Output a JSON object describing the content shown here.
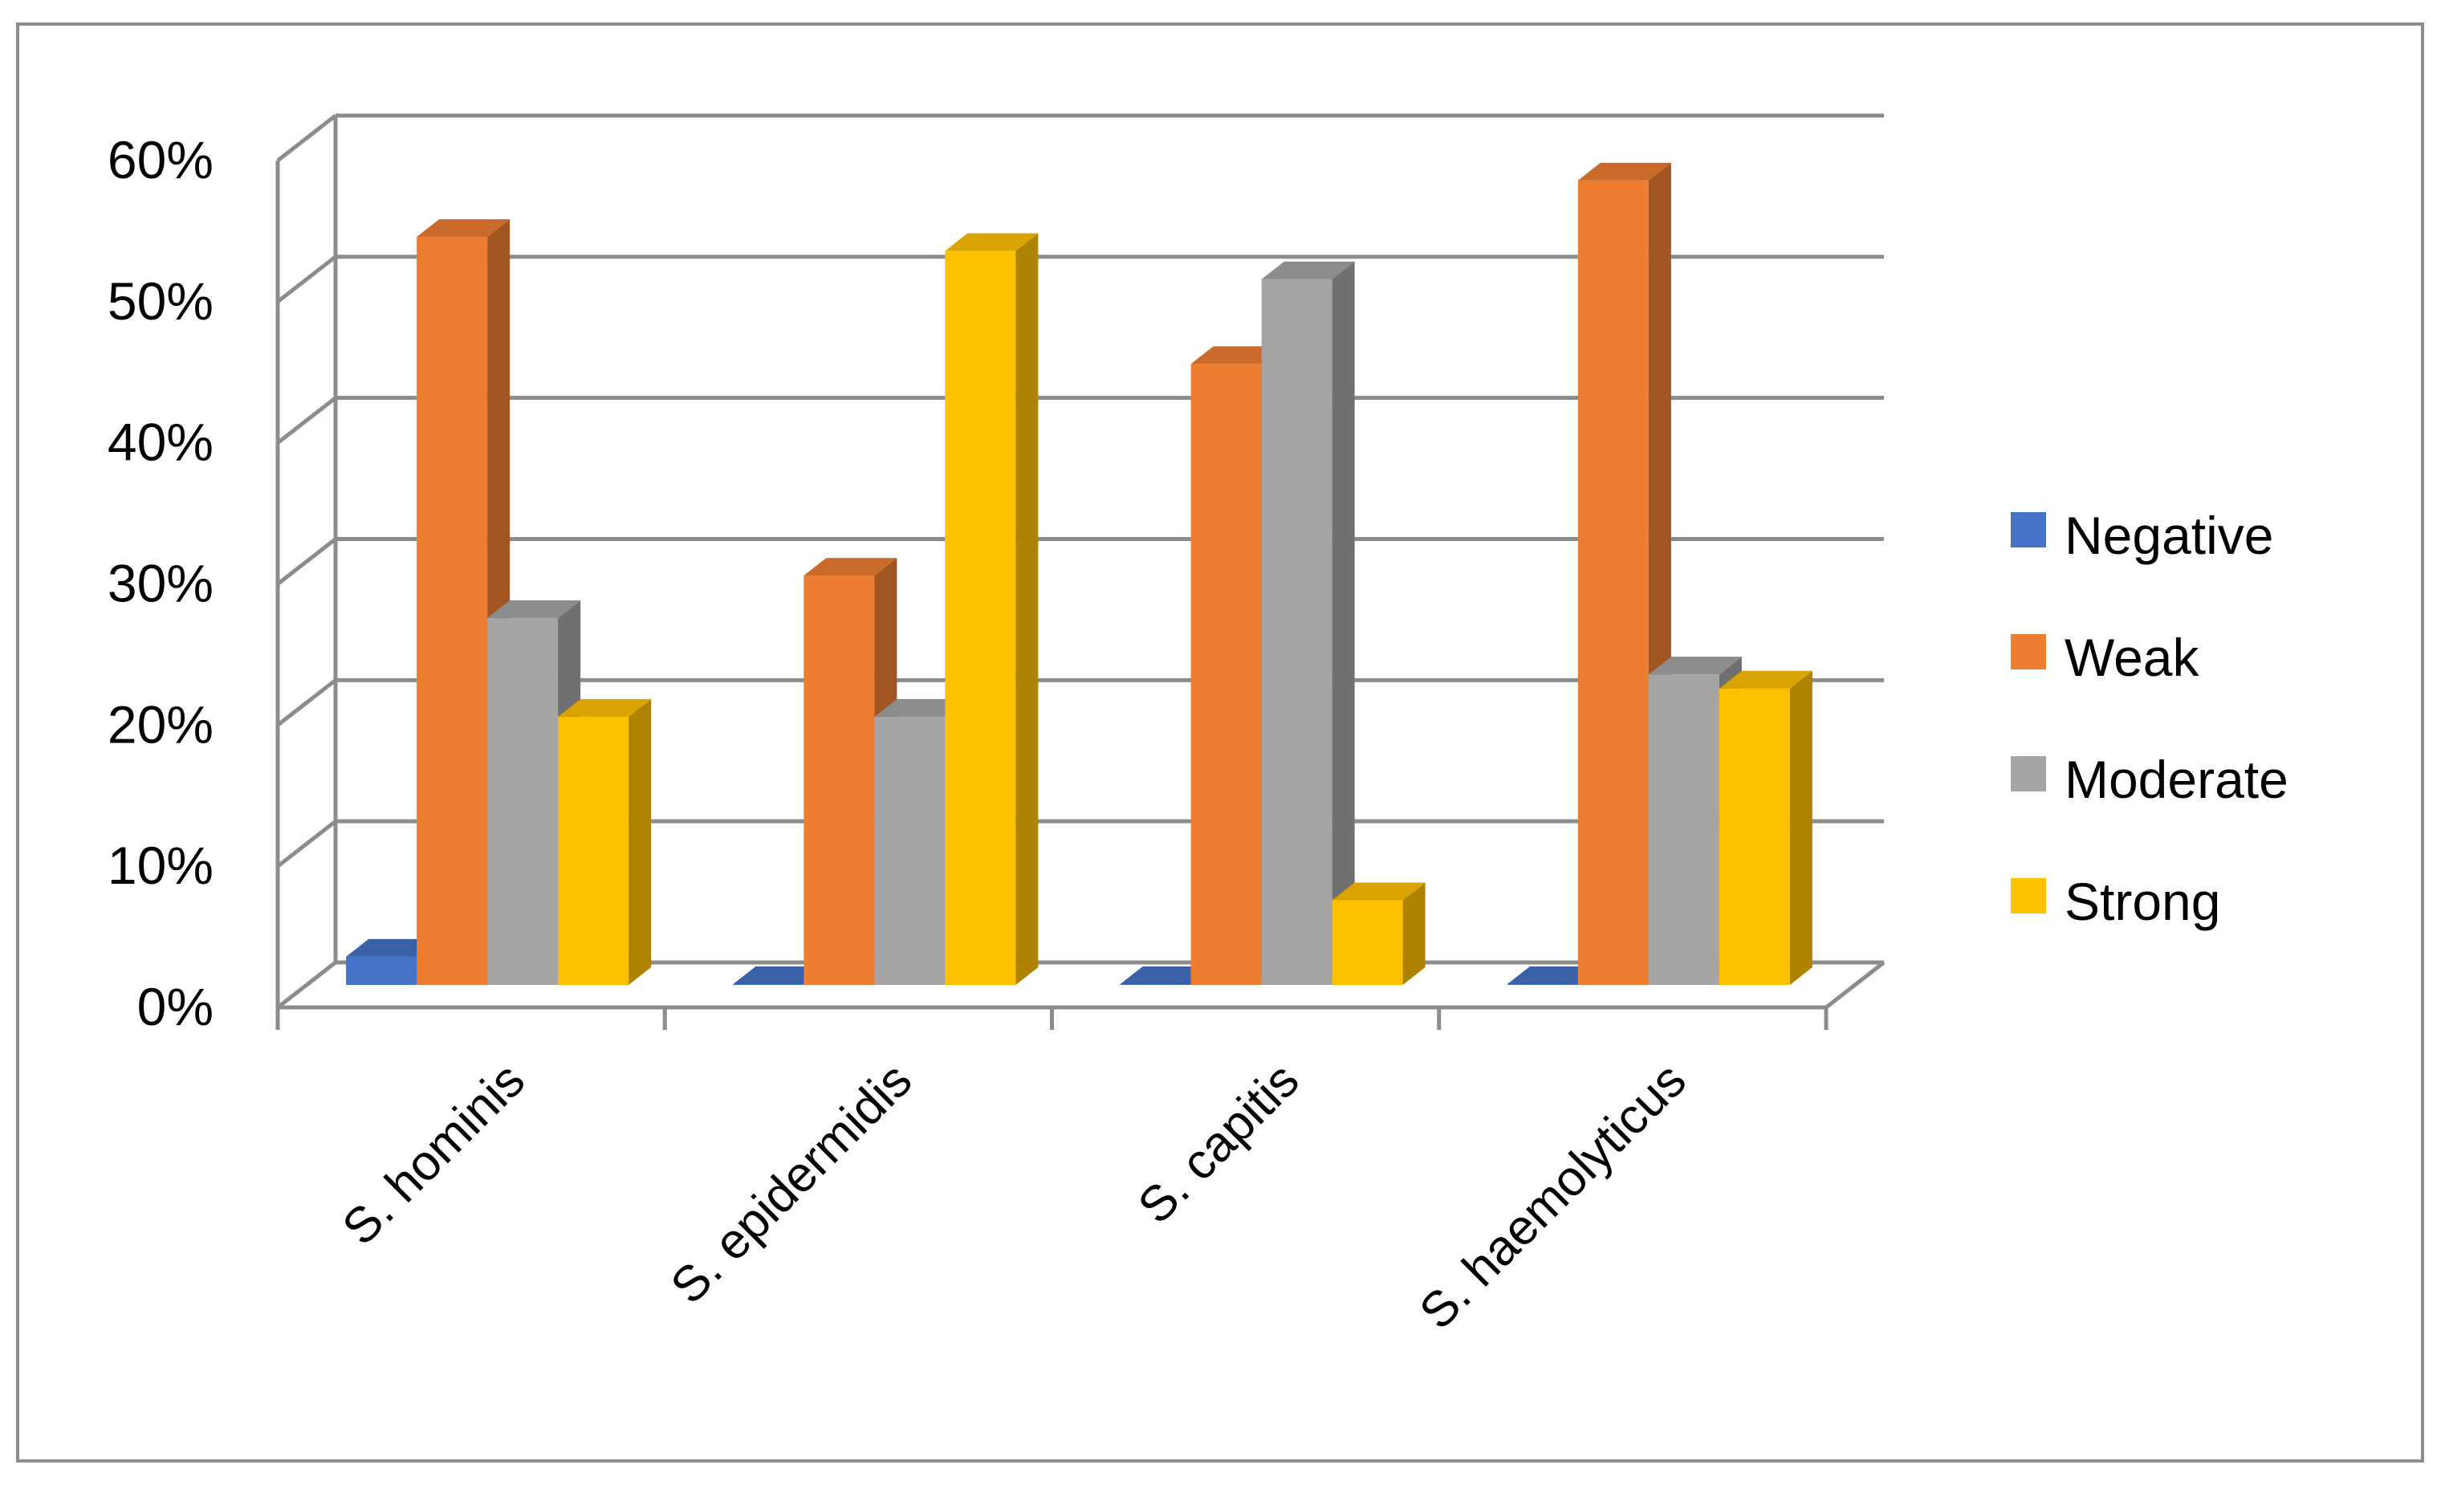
{
  "chart_data": {
    "type": "bar",
    "categories": [
      "S. hominis",
      "S. epidermidis",
      "S. capitis",
      "S. haemolyticus"
    ],
    "series": [
      {
        "name": "Negative",
        "color": "#4472C4",
        "values": [
          2,
          0,
          0,
          0
        ]
      },
      {
        "name": "Weak",
        "color": "#ED7D31",
        "values": [
          53,
          29,
          44,
          57
        ]
      },
      {
        "name": "Moderate",
        "color": "#A5A5A5",
        "values": [
          26,
          19,
          50,
          22
        ]
      },
      {
        "name": "Strong",
        "color": "#FFC000",
        "values": [
          19,
          52,
          6,
          21
        ]
      }
    ],
    "ylim": [
      0,
      60
    ],
    "yticks": [
      "0%",
      "10%",
      "20%",
      "30%",
      "40%",
      "50%",
      "60%"
    ],
    "grid": true,
    "legend": "right",
    "style": "3d-clustered-column"
  }
}
